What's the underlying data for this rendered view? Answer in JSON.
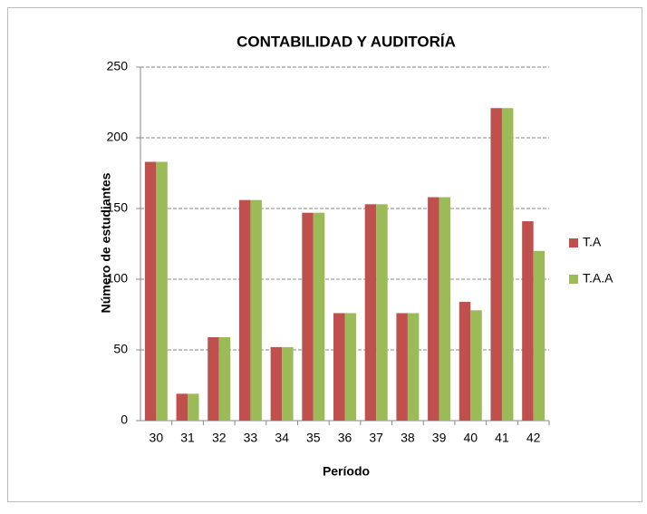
{
  "chart_data": {
    "type": "bar",
    "title": "CONTABILIDAD Y AUDITORÍA",
    "x_label": "Período",
    "y_label": "Número de estudiantes",
    "categories": [
      "30",
      "31",
      "32",
      "33",
      "34",
      "35",
      "36",
      "37",
      "38",
      "39",
      "40",
      "41",
      "42"
    ],
    "series": [
      {
        "name": "T.A",
        "color": "#c0504d",
        "values": [
          183,
          19,
          59,
          156,
          52,
          147,
          76,
          153,
          76,
          158,
          84,
          221,
          141
        ]
      },
      {
        "name": "T.A.A",
        "color": "#9bbb59",
        "values": [
          183,
          19,
          59,
          156,
          52,
          147,
          76,
          153,
          76,
          158,
          78,
          221,
          120
        ]
      }
    ],
    "ylim": [
      0,
      250
    ],
    "yticks": [
      0,
      50,
      100,
      150,
      200,
      250
    ],
    "grid": true,
    "legend": "right"
  }
}
